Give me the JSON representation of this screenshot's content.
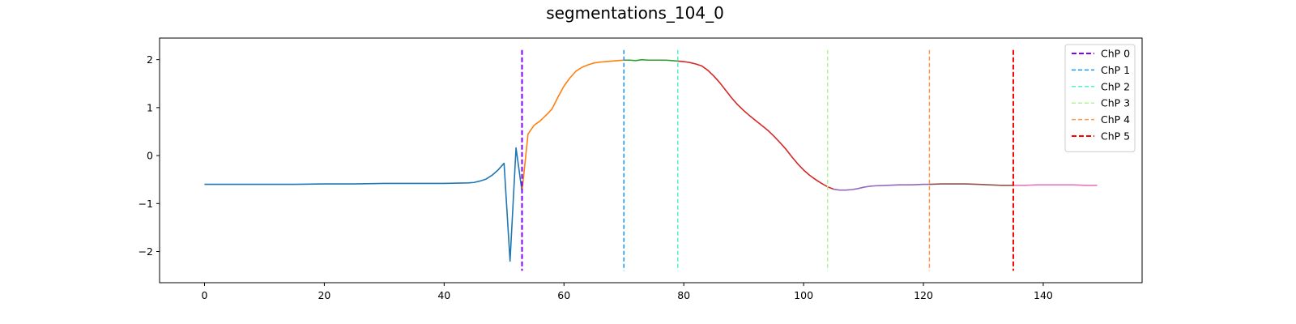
{
  "chart_data": {
    "type": "line",
    "title": "segmentations_104_0",
    "xlabel": "",
    "ylabel": "",
    "xlim": [
      -7.5,
      156.5
    ],
    "ylim": [
      -2.65,
      2.45
    ],
    "xticks": [
      0,
      20,
      40,
      60,
      80,
      100,
      120,
      140
    ],
    "yticks": [
      -2,
      -1,
      0,
      1,
      2
    ],
    "grid": false,
    "legend_position": "top-right",
    "segments": [
      {
        "color": "#1f77b4",
        "points": [
          [
            0,
            -0.6
          ],
          [
            5,
            -0.6
          ],
          [
            10,
            -0.6
          ],
          [
            15,
            -0.6
          ],
          [
            20,
            -0.59
          ],
          [
            25,
            -0.59
          ],
          [
            30,
            -0.58
          ],
          [
            35,
            -0.58
          ],
          [
            40,
            -0.58
          ],
          [
            44,
            -0.57
          ],
          [
            45,
            -0.56
          ],
          [
            46,
            -0.53
          ],
          [
            47,
            -0.49
          ],
          [
            48,
            -0.41
          ],
          [
            49,
            -0.3
          ],
          [
            50,
            -0.16
          ],
          [
            51,
            -2.2
          ],
          [
            52,
            0.16
          ],
          [
            53,
            -0.75
          ]
        ]
      },
      {
        "color": "#ff7f0e",
        "points": [
          [
            53,
            -0.75
          ],
          [
            54,
            0.45
          ],
          [
            55,
            0.63
          ],
          [
            56,
            0.72
          ],
          [
            57,
            0.84
          ],
          [
            58,
            0.97
          ],
          [
            59,
            1.22
          ],
          [
            60,
            1.45
          ],
          [
            61,
            1.62
          ],
          [
            62,
            1.76
          ],
          [
            63,
            1.84
          ],
          [
            64,
            1.89
          ],
          [
            65,
            1.93
          ],
          [
            66,
            1.95
          ],
          [
            67,
            1.96
          ],
          [
            68,
            1.97
          ],
          [
            69,
            1.98
          ],
          [
            70,
            1.99
          ]
        ]
      },
      {
        "color": "#2ca02c",
        "points": [
          [
            70,
            1.99
          ],
          [
            71,
            1.99
          ],
          [
            72,
            1.98
          ],
          [
            73,
            2.0
          ],
          [
            74,
            1.99
          ],
          [
            75,
            1.99
          ],
          [
            76,
            1.99
          ],
          [
            77,
            1.99
          ],
          [
            78,
            1.98
          ],
          [
            79,
            1.97
          ]
        ]
      },
      {
        "color": "#d62728",
        "points": [
          [
            79,
            1.97
          ],
          [
            80,
            1.96
          ],
          [
            81,
            1.94
          ],
          [
            82,
            1.91
          ],
          [
            83,
            1.87
          ],
          [
            84,
            1.78
          ],
          [
            85,
            1.66
          ],
          [
            86,
            1.52
          ],
          [
            87,
            1.36
          ],
          [
            88,
            1.2
          ],
          [
            89,
            1.06
          ],
          [
            90,
            0.94
          ],
          [
            91,
            0.83
          ],
          [
            92,
            0.73
          ],
          [
            93,
            0.63
          ],
          [
            94,
            0.53
          ],
          [
            95,
            0.41
          ],
          [
            96,
            0.28
          ],
          [
            97,
            0.14
          ],
          [
            98,
            -0.02
          ],
          [
            99,
            -0.17
          ],
          [
            100,
            -0.3
          ],
          [
            101,
            -0.41
          ],
          [
            102,
            -0.5
          ],
          [
            103,
            -0.58
          ],
          [
            104,
            -0.65
          ],
          [
            105,
            -0.7
          ]
        ]
      },
      {
        "color": "#9467bd",
        "points": [
          [
            105,
            -0.7
          ],
          [
            106,
            -0.72
          ],
          [
            107,
            -0.72
          ],
          [
            108,
            -0.71
          ],
          [
            109,
            -0.69
          ],
          [
            110,
            -0.66
          ],
          [
            111,
            -0.64
          ],
          [
            112,
            -0.63
          ],
          [
            114,
            -0.62
          ],
          [
            116,
            -0.61
          ],
          [
            118,
            -0.61
          ],
          [
            120,
            -0.6
          ],
          [
            121,
            -0.6
          ]
        ]
      },
      {
        "color": "#8c564b",
        "points": [
          [
            121,
            -0.6
          ],
          [
            123,
            -0.59
          ],
          [
            125,
            -0.59
          ],
          [
            127,
            -0.59
          ],
          [
            129,
            -0.6
          ],
          [
            131,
            -0.61
          ],
          [
            133,
            -0.62
          ],
          [
            135,
            -0.62
          ]
        ]
      },
      {
        "color": "#e377c2",
        "points": [
          [
            135,
            -0.62
          ],
          [
            137,
            -0.62
          ],
          [
            139,
            -0.61
          ],
          [
            141,
            -0.61
          ],
          [
            143,
            -0.61
          ],
          [
            145,
            -0.61
          ],
          [
            147,
            -0.62
          ],
          [
            149,
            -0.62
          ]
        ]
      }
    ],
    "changepoints": [
      {
        "name": "ChP 0",
        "x": 53,
        "color": "#8000ff",
        "style": "dashed-bold"
      },
      {
        "name": "ChP 1",
        "x": 70,
        "color": "#1996f3",
        "style": "dashed"
      },
      {
        "name": "ChP 2",
        "x": 79,
        "color": "#4df3ce",
        "style": "dashed"
      },
      {
        "name": "ChP 3",
        "x": 104,
        "color": "#b2f396",
        "style": "dashed"
      },
      {
        "name": "ChP 4",
        "x": 121,
        "color": "#ff964f",
        "style": "dashed"
      },
      {
        "name": "ChP 5",
        "x": 135,
        "color": "#ff0000",
        "style": "dashed-bold"
      }
    ],
    "changepoint_ymin": -2.4,
    "changepoint_ymax": 2.2
  }
}
